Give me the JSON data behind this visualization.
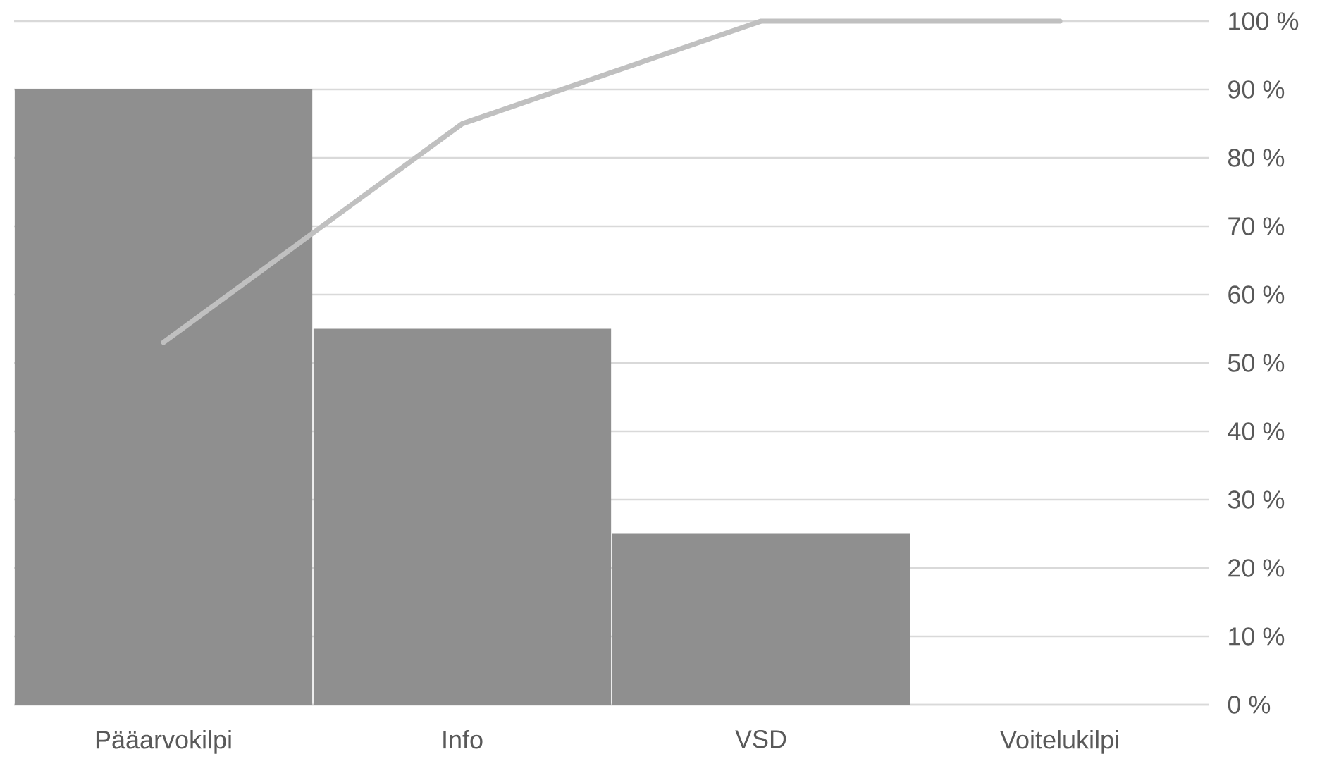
{
  "chart_data": {
    "type": "bar",
    "categories": [
      "Pääarvokilpi",
      "Info",
      "VSD",
      "Voitelukilpi"
    ],
    "series": [
      {
        "axis": "y2",
        "color": "#8f8f8f",
        "values": [
          90,
          55,
          25,
          0
        ]
      },
      {
        "type": "line",
        "axis": "y2",
        "color": "#c0c0c0",
        "values": [
          53,
          85,
          100,
          100
        ]
      }
    ],
    "y2lim": [
      0,
      100
    ],
    "y2ticks": [
      {
        "value": 0,
        "label": "0 %"
      },
      {
        "value": 10,
        "label": "10 %"
      },
      {
        "value": 20,
        "label": "20 %"
      },
      {
        "value": 30,
        "label": "30 %"
      },
      {
        "value": 40,
        "label": "40 %"
      },
      {
        "value": 50,
        "label": "50 %"
      },
      {
        "value": 60,
        "label": "60 %"
      },
      {
        "value": 70,
        "label": "70 %"
      },
      {
        "value": 80,
        "label": "80 %"
      },
      {
        "value": 90,
        "label": "90 %"
      },
      {
        "value": 100,
        "label": "100 %"
      }
    ],
    "grid": "y"
  }
}
